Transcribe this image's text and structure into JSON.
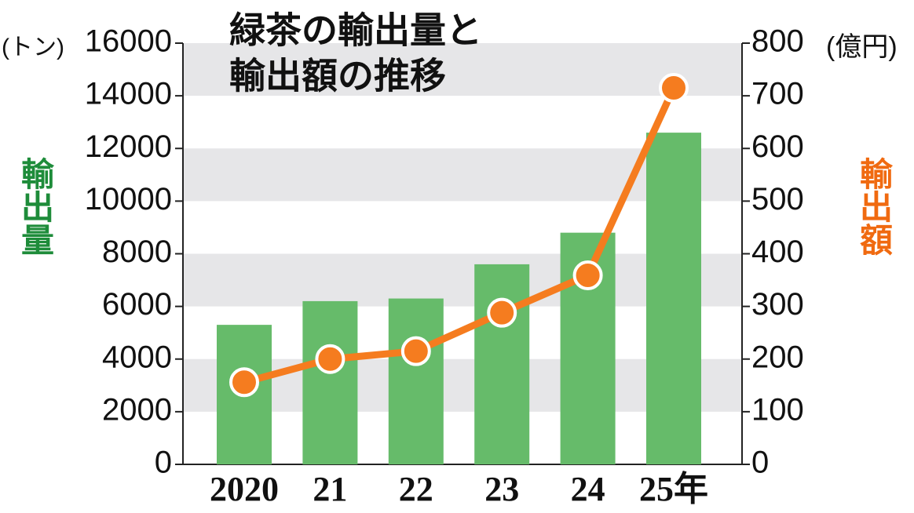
{
  "chart_data": {
    "type": "bar_line",
    "title": [
      "緑茶の輸出量と",
      "輸出額の推移"
    ],
    "categories": [
      "2020",
      "21",
      "22",
      "23",
      "24",
      "25年"
    ],
    "series": [
      {
        "name": "輸出量",
        "type": "bar",
        "color": "#66bb6a",
        "values": [
          5300,
          6200,
          6300,
          7600,
          8800,
          12600
        ]
      },
      {
        "name": "輸出額",
        "type": "line",
        "axis": "y2",
        "color": "#f57c1f",
        "values": [
          156,
          200,
          215,
          288,
          359,
          715
        ]
      }
    ],
    "yunit": "(トン)",
    "y2unit": "(億円)",
    "ylim": [
      0,
      16000
    ],
    "yticks": [
      0,
      2000,
      4000,
      6000,
      8000,
      10000,
      12000,
      14000,
      16000
    ],
    "y2lim": [
      0,
      800
    ],
    "y2ticks": [
      0,
      100,
      200,
      300,
      400,
      500,
      600,
      700,
      800
    ],
    "grid": "bands"
  }
}
